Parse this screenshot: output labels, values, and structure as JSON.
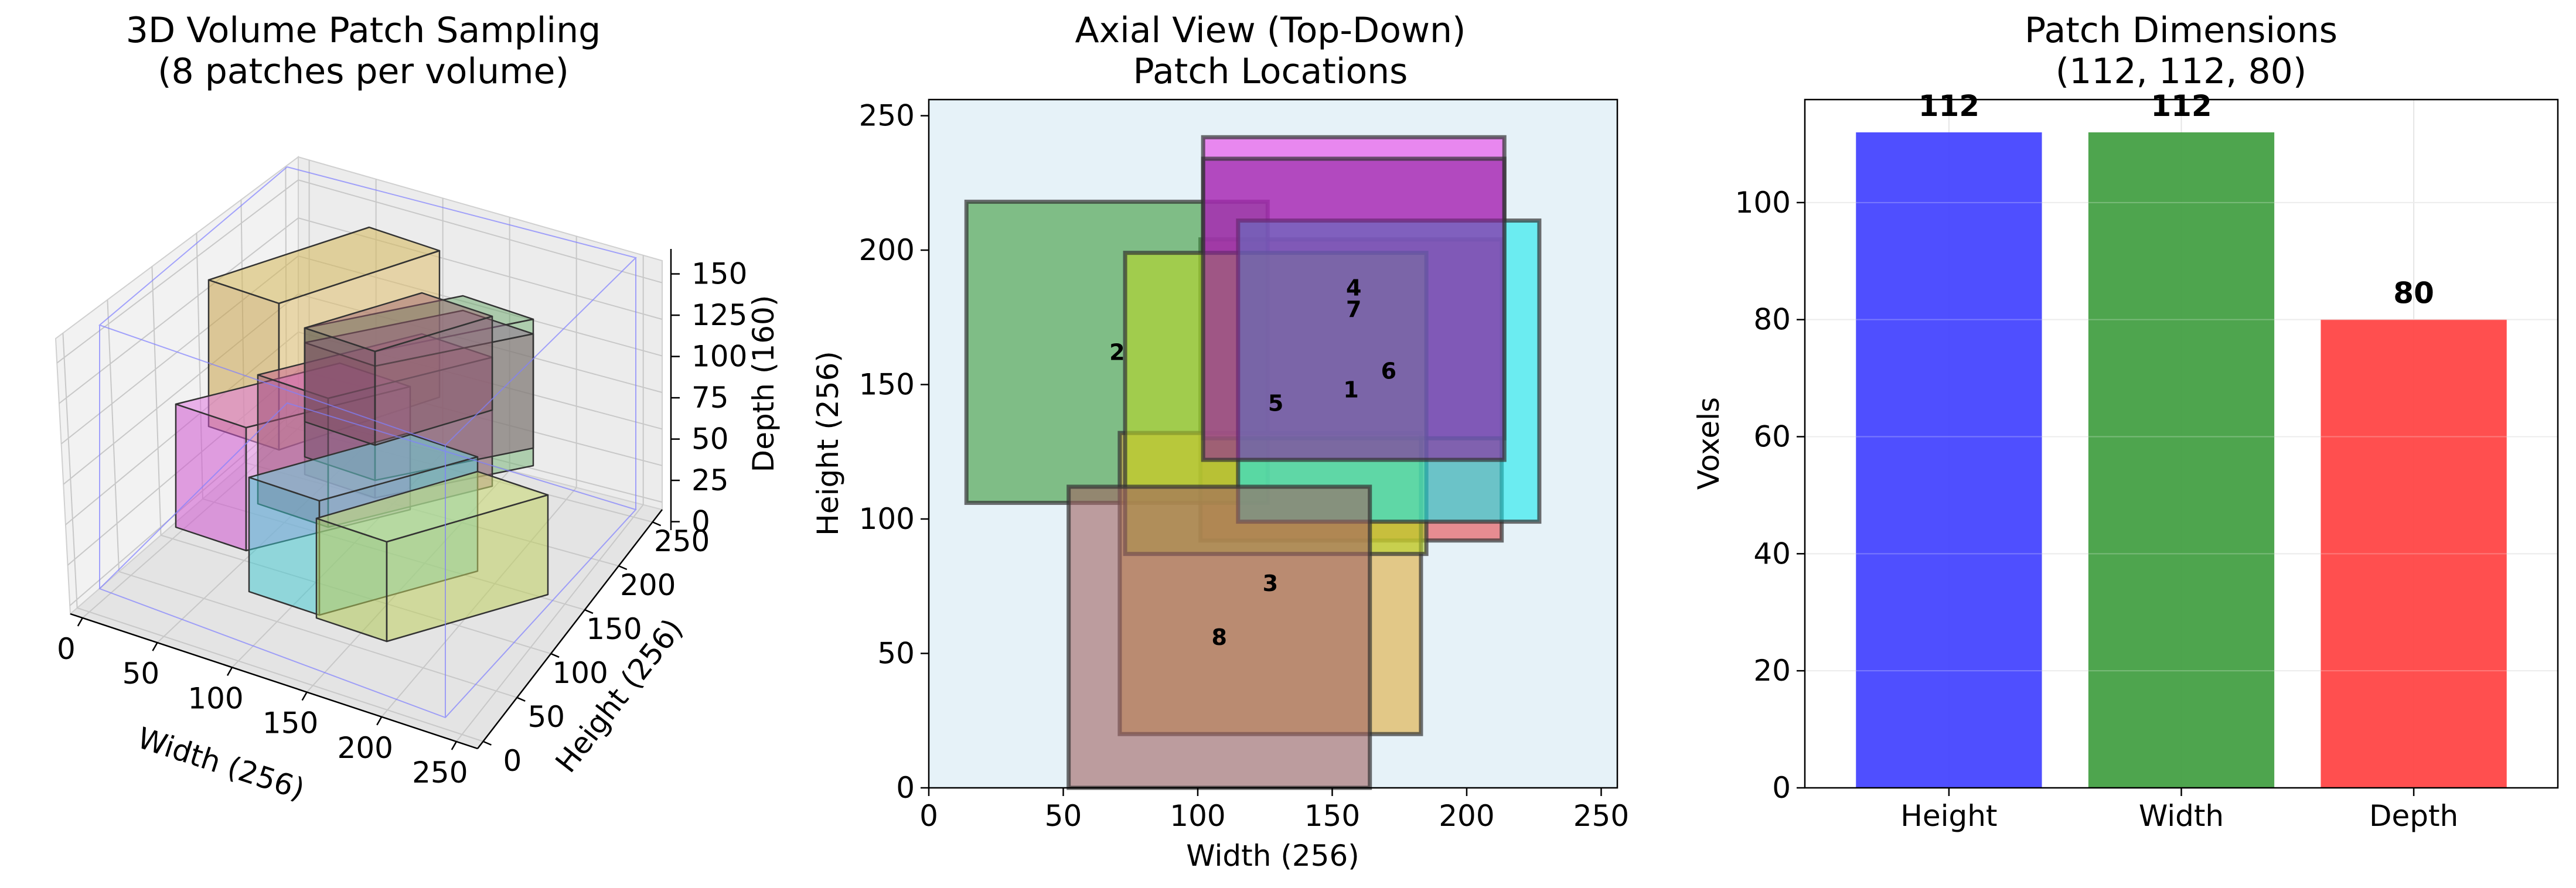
{
  "chart_data": [
    {
      "type": "3d-box",
      "title": [
        "3D Volume Patch Sampling",
        "(8 patches per volume)"
      ],
      "xlabel": "Width (256)",
      "ylabel": "Height (256)",
      "zlabel": "Depth (160)",
      "x_ticks": [
        "0",
        "50",
        "100",
        "150",
        "200",
        "250"
      ],
      "y_ticks": [
        "0",
        "50",
        "100",
        "150",
        "200",
        "250"
      ],
      "z_ticks": [
        "0",
        "25",
        "50",
        "75",
        "100",
        "125",
        "150"
      ],
      "xlim": [
        0,
        256
      ],
      "ylim": [
        0,
        256
      ],
      "zlim": [
        0,
        160
      ],
      "volume": [
        256,
        256,
        160
      ],
      "grid": true
    },
    {
      "type": "rectangles",
      "title": [
        "Axial View (Top-Down)",
        "Patch Locations"
      ],
      "xlabel": "Width (256)",
      "ylabel": "Height (256)",
      "xlim": [
        0,
        256
      ],
      "ylim": [
        0,
        256
      ],
      "x_ticks": [
        "0",
        "50",
        "100",
        "150",
        "200",
        "250"
      ],
      "y_ticks": [
        "0",
        "50",
        "100",
        "150",
        "200",
        "250"
      ],
      "background": "#e6f2f8",
      "patches": [
        {
          "label": "1",
          "x": 101,
          "y": 92,
          "w": 112,
          "h": 112,
          "color": "#e8474c"
        },
        {
          "label": "2",
          "x": 14,
          "y": 106,
          "w": 112,
          "h": 112,
          "color": "#3a9a3a"
        },
        {
          "label": "3",
          "x": 71,
          "y": 20,
          "w": 112,
          "h": 112,
          "color": "#e0ac3c"
        },
        {
          "label": "4",
          "x": 102,
          "y": 130,
          "w": 112,
          "h": 112,
          "color": "#ea40ea"
        },
        {
          "label": "5",
          "x": 73,
          "y": 87,
          "w": 112,
          "h": 112,
          "color": "#b8d628"
        },
        {
          "label": "6",
          "x": 115,
          "y": 99,
          "w": 112,
          "h": 112,
          "color": "#19e8ec"
        },
        {
          "label": "7",
          "x": 102,
          "y": 122,
          "w": 112,
          "h": 112,
          "color": "#8e1f9e"
        },
        {
          "label": "8",
          "x": 52,
          "y": 0,
          "w": 112,
          "h": 112,
          "color": "#a06262"
        }
      ]
    },
    {
      "type": "bar",
      "title": [
        "Patch Dimensions",
        "(112, 112, 80)"
      ],
      "categories": [
        "Height",
        "Width",
        "Depth"
      ],
      "values": [
        112,
        112,
        80
      ],
      "value_labels": [
        "112",
        "112",
        "80"
      ],
      "colors": [
        "#4646ff",
        "#45a045",
        "#ff4646"
      ],
      "xlabel": "",
      "ylabel": "Voxels",
      "ylim": [
        0,
        117.6
      ],
      "y_ticks": [
        0,
        20,
        40,
        60,
        80,
        100
      ],
      "grid": true
    }
  ]
}
